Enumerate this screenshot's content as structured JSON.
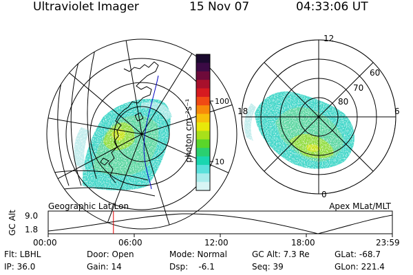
{
  "header": {
    "instrument": "Ultraviolet Imager",
    "date": "15 Nov 07",
    "time": "04:33:06 UT"
  },
  "colorbar": {
    "unit_label": "photon cm⁻²s⁻¹",
    "ticks": [
      "100",
      "10"
    ],
    "colors": [
      "#1a0a2e",
      "#3b0a45",
      "#6e0a3a",
      "#a8102c",
      "#d61a20",
      "#f04a14",
      "#f78a0a",
      "#f7c00a",
      "#e8e80a",
      "#a8e01a",
      "#5ad62a",
      "#2ad070",
      "#1ad6b0",
      "#5ae0dc",
      "#a8ecec",
      "#d8f4f4"
    ]
  },
  "left_panel": {
    "caption": "Geographic Lat/Lon"
  },
  "right_panel": {
    "caption": "Apex MLat/MLT",
    "mlt_labels": [
      "12",
      "18",
      "6",
      "0"
    ],
    "mlat_labels": [
      "60",
      "70",
      "80"
    ]
  },
  "altitude_plot": {
    "ylabel": "GC Alt",
    "y_ticks": [
      "9.0",
      "1.8"
    ],
    "x_ticks": [
      "00:00",
      "06:00",
      "12:00",
      "18:00",
      "23:59"
    ],
    "current_time_marker_hours": 4.55
  },
  "info_rows": [
    [
      {
        "text": "Flt: LBHL"
      },
      {
        "text": "Door: Open"
      },
      {
        "text": "Mode: Normal"
      },
      {
        "text": "GC Alt: 7.3 Re"
      },
      {
        "text": "GLat: -68.7"
      }
    ],
    [
      {
        "text": "IP: 36.0"
      },
      {
        "text": "Gain: 14"
      },
      {
        "text": "Dsp:    -6.1"
      },
      {
        "text": "Seq: 39"
      },
      {
        "text": "GLon: 221.4"
      }
    ]
  ],
  "colors": {
    "marker": "#e00000",
    "track": "#0000c0"
  }
}
